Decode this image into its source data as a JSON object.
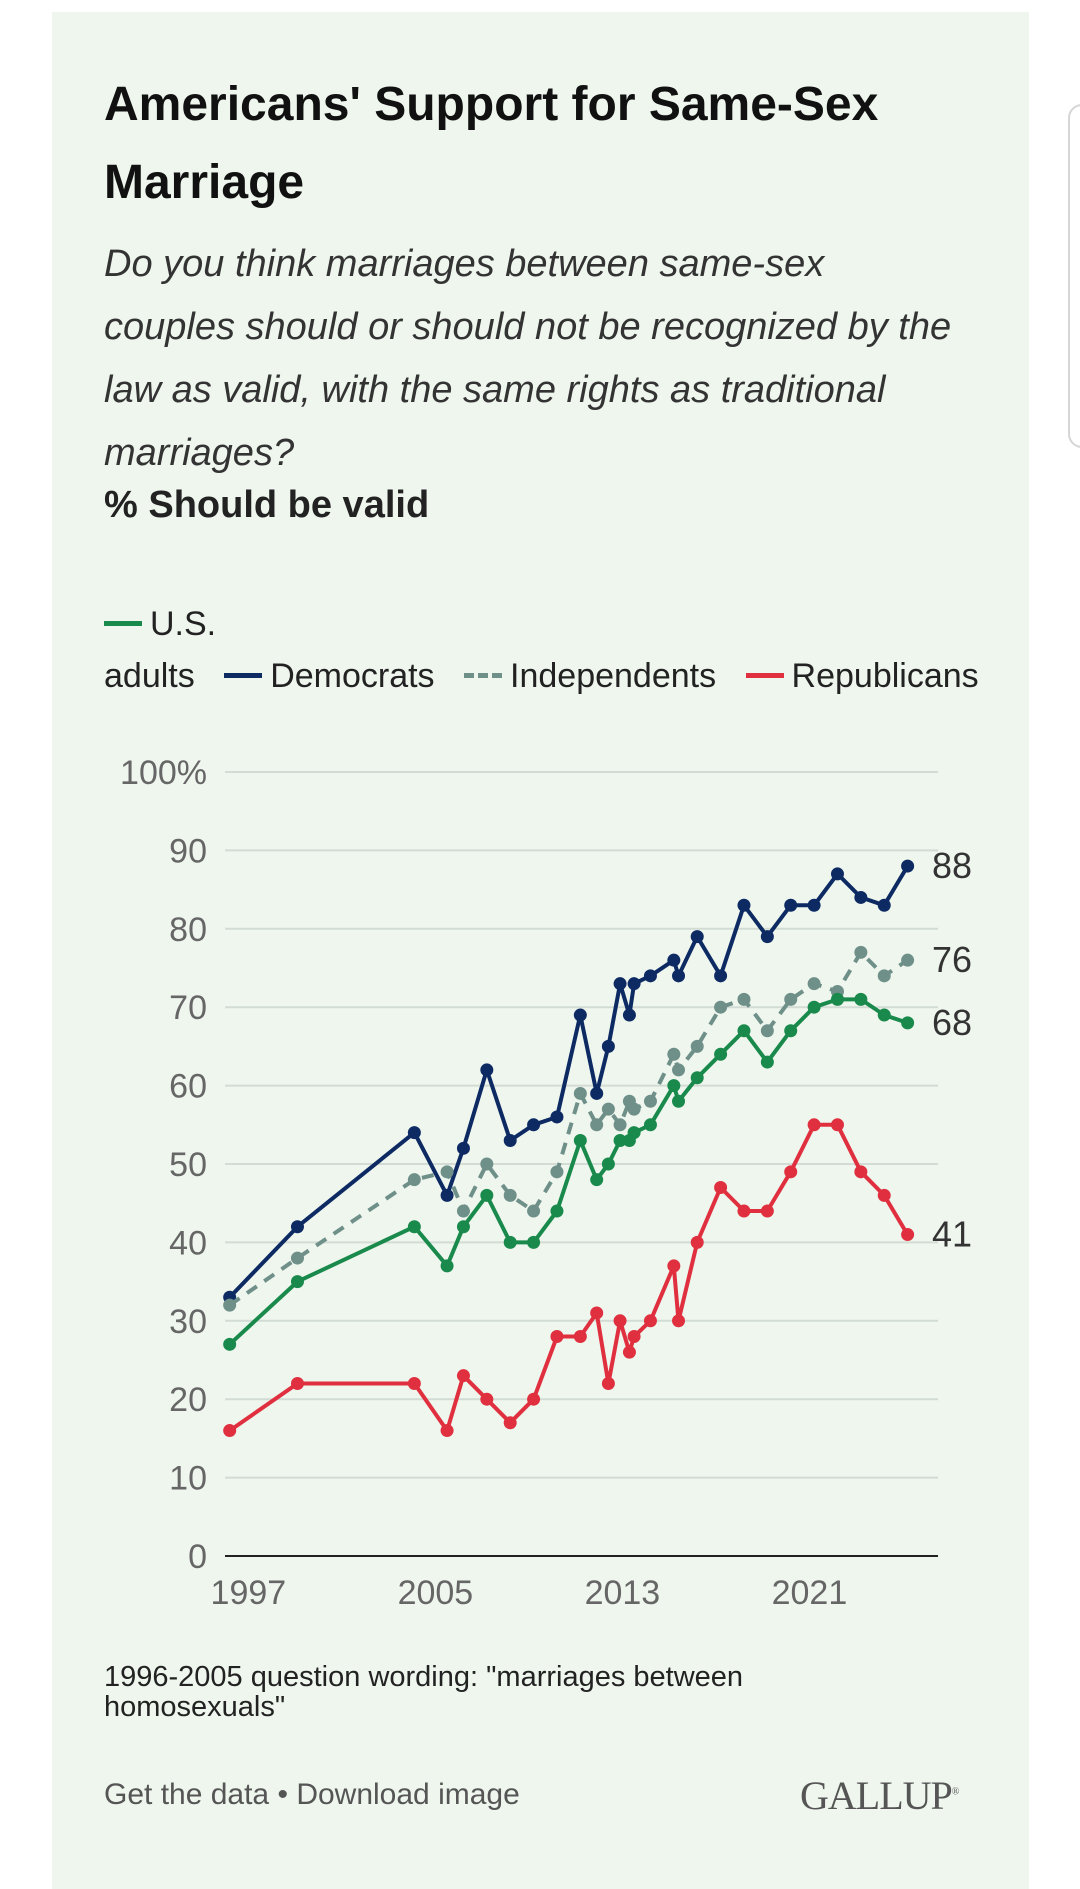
{
  "title": "Americans' Support for Same-Sex Marriage",
  "question": "Do you think marriages between same-sex couples should or should not be recognized by the law as valid, with the same rights as traditional marriages?",
  "measure": "% Should be valid",
  "legend": {
    "us_adults_line1": "U.S.",
    "us_adults_line2": "adults",
    "democrats": "Democrats",
    "independents": "Independents",
    "republicans": "Republicans"
  },
  "note": "1996-2005 question wording: \"marriages between homosexuals\"",
  "footer": {
    "get_data": "Get the data",
    "separator": " • ",
    "download": "Download image",
    "logo": "GALLUP"
  },
  "colors": {
    "us_adults": "#1a8a4c",
    "democrats": "#0d2a63",
    "independents": "#6f8f89",
    "republicans": "#e0303f"
  },
  "chart_data": {
    "type": "line",
    "ylim": [
      0,
      100
    ],
    "yticks": [
      0,
      10,
      20,
      30,
      40,
      50,
      60,
      70,
      80,
      90,
      100
    ],
    "ytick_labels": [
      "0",
      "10",
      "20",
      "30",
      "40",
      "50",
      "60",
      "70",
      "80",
      "90",
      "100%"
    ],
    "xlim": [
      1996,
      2026.5
    ],
    "xticks": [
      1997,
      2005,
      2013,
      2021
    ],
    "xtick_labels": [
      "1997",
      "2005",
      "2013",
      "2021"
    ],
    "grid": true,
    "legend_position": "top",
    "end_labels": {
      "democrats": "88",
      "independents": "76",
      "us_adults": "68",
      "republicans": "41"
    },
    "series": [
      {
        "key": "democrats",
        "name": "Democrats",
        "style": "solid",
        "x": [
          1996.2,
          1999.1,
          2004.1,
          2005.5,
          2006.2,
          2007.2,
          2008.2,
          2009.2,
          2010.2,
          2011.2,
          2011.9,
          2012.4,
          2012.9,
          2013.3,
          2013.5,
          2014.2,
          2015.2,
          2015.4,
          2016.2,
          2017.2,
          2018.2,
          2019.2,
          2020.2,
          2021.2,
          2022.2,
          2023.2,
          2024.2,
          2025.2
        ],
        "y": [
          33,
          42,
          54,
          46,
          52,
          62,
          53,
          55,
          56,
          69,
          59,
          65,
          73,
          69,
          73,
          74,
          76,
          74,
          79,
          74,
          83,
          79,
          83,
          83,
          87,
          84,
          83,
          88
        ]
      },
      {
        "key": "independents",
        "name": "Independents",
        "style": "dashed",
        "x": [
          1996.2,
          1999.1,
          2004.1,
          2005.5,
          2006.2,
          2007.2,
          2008.2,
          2009.2,
          2010.2,
          2011.2,
          2011.9,
          2012.4,
          2012.9,
          2013.3,
          2013.5,
          2014.2,
          2015.2,
          2015.4,
          2016.2,
          2017.2,
          2018.2,
          2019.2,
          2020.2,
          2021.2,
          2022.2,
          2023.2,
          2024.2,
          2025.2
        ],
        "y": [
          32,
          38,
          48,
          49,
          44,
          50,
          46,
          44,
          49,
          59,
          55,
          57,
          55,
          58,
          57,
          58,
          64,
          62,
          65,
          70,
          71,
          67,
          71,
          73,
          72,
          77,
          74,
          76
        ]
      },
      {
        "key": "us_adults",
        "name": "U.S. adults",
        "style": "solid",
        "x": [
          1996.2,
          1999.1,
          2004.1,
          2005.5,
          2006.2,
          2007.2,
          2008.2,
          2009.2,
          2010.2,
          2011.2,
          2011.9,
          2012.4,
          2012.9,
          2013.3,
          2013.5,
          2014.2,
          2015.2,
          2015.4,
          2016.2,
          2017.2,
          2018.2,
          2019.2,
          2020.2,
          2021.2,
          2022.2,
          2023.2,
          2024.2,
          2025.2
        ],
        "y": [
          27,
          35,
          42,
          37,
          42,
          46,
          40,
          40,
          44,
          53,
          48,
          50,
          53,
          53,
          54,
          55,
          60,
          58,
          61,
          64,
          67,
          63,
          67,
          70,
          71,
          71,
          69,
          68
        ]
      },
      {
        "key": "republicans",
        "name": "Republicans",
        "style": "solid",
        "x": [
          1996.2,
          1999.1,
          2004.1,
          2005.5,
          2006.2,
          2007.2,
          2008.2,
          2009.2,
          2010.2,
          2011.2,
          2011.9,
          2012.4,
          2012.9,
          2013.3,
          2013.5,
          2014.2,
          2015.2,
          2015.4,
          2016.2,
          2017.2,
          2018.2,
          2019.2,
          2020.2,
          2021.2,
          2022.2,
          2023.2,
          2024.2,
          2025.2
        ],
        "y": [
          16,
          22,
          22,
          16,
          23,
          20,
          17,
          20,
          28,
          28,
          31,
          22,
          30,
          26,
          28,
          30,
          37,
          30,
          40,
          47,
          44,
          44,
          49,
          55,
          55,
          49,
          46,
          41
        ]
      }
    ]
  }
}
